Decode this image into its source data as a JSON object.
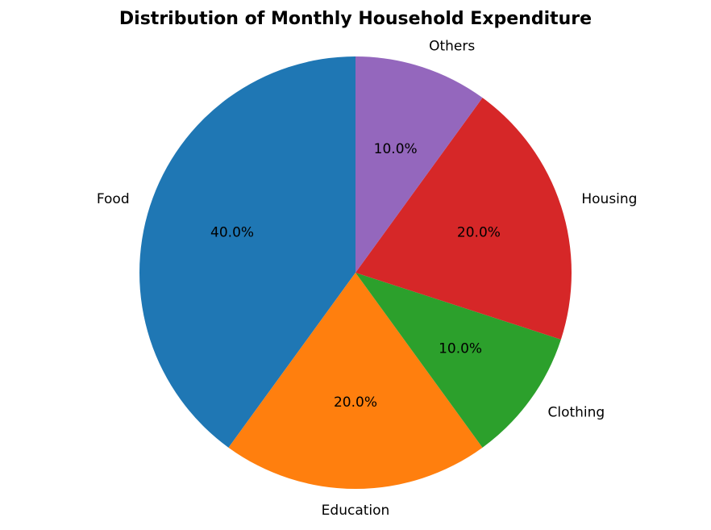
{
  "chart_data": {
    "type": "pie",
    "title": "Distribution of Monthly Household Expenditure",
    "categories": [
      "Food",
      "Education",
      "Clothing",
      "Housing",
      "Others"
    ],
    "values": [
      40,
      20,
      10,
      20,
      10
    ],
    "value_labels": [
      "40.0%",
      "20.0%",
      "10.0%",
      "20.0%",
      "10.0%"
    ],
    "colors": [
      "#1f77b4",
      "#ff7f0e",
      "#2ca02c",
      "#d62728",
      "#9467bd"
    ],
    "start_angle": 90,
    "direction": "counterclockwise"
  }
}
